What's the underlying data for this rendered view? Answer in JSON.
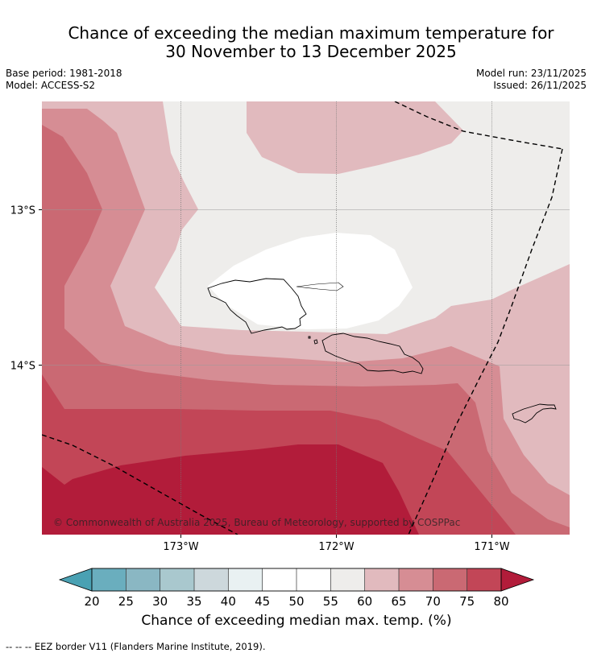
{
  "title": {
    "line1": "Chance of exceeding the median maximum temperature for",
    "line2": "30 November to 13 December 2025"
  },
  "meta": {
    "base_period": "Base period: 1981-2018",
    "model": "Model: ACCESS-S2",
    "model_run": "Model run: 23/11/2025",
    "issued": "Issued: 26/11/2025"
  },
  "map": {
    "lon_labels": [
      "173°W",
      "172°W",
      "171°W"
    ],
    "lat_labels": [
      "13°S",
      "14°S"
    ],
    "copyright": "© Commonwealth of Australia 2025, Bureau of Meteorology, supported by COSPPac",
    "colors": {
      "p80plus": "#b21c3a",
      "p75": "#c24657",
      "p70": "#ca6973",
      "p65": "#d68d94",
      "p60": "#e1babe",
      "p55": "#eeedeb",
      "p50": "#ffffff",
      "land": "#000000"
    }
  },
  "colorbar": {
    "ticks": [
      "20",
      "25",
      "30",
      "35",
      "40",
      "45",
      "50",
      "55",
      "60",
      "65",
      "70",
      "75",
      "80"
    ],
    "colors": [
      "#6aaebe",
      "#8ab7c3",
      "#a9c8ce",
      "#cdd8dc",
      "#e9f1f2",
      "#ffffff",
      "#ffffff",
      "#eeedeb",
      "#e1babe",
      "#d68d94",
      "#ca6973",
      "#c24657"
    ],
    "under_color": "#4aa1b3",
    "over_color": "#b21c3a",
    "label": "Chance of exceeding median max. temp. (%)"
  },
  "footnote": "--  --  -- EEZ border V11 (Flanders Marine Institute, 2019)."
}
